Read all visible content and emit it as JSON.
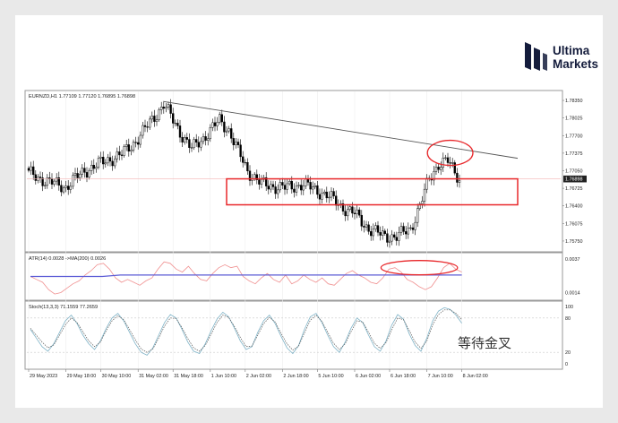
{
  "brand": {
    "name_line1": "Ultima",
    "name_line2": "Markets",
    "logo_icon": "ultima-markets-mark",
    "color": "#141c3c"
  },
  "chart_data": [
    {
      "type": "candlestick",
      "panel": "price",
      "header": "EURNZD,H1  1.77109 1.77120 1.76895 1.76898",
      "symbol": "EURNZD",
      "timeframe": "H1",
      "ohlc_readout": {
        "open": 1.77109,
        "high": 1.7712,
        "low": 1.76895,
        "close": 1.76898
      },
      "current_price_label": "1.76898",
      "ylim": [
        1.756,
        1.785
      ],
      "y_ticks": [
        "1.78350",
        "1.78025",
        "1.77700",
        "1.77375",
        "1.77050",
        "1.76725",
        "1.76400",
        "1.76075",
        "1.75750"
      ],
      "y_tick_values": [
        1.7835,
        1.78025,
        1.777,
        1.77375,
        1.7705,
        1.76725,
        1.764,
        1.76075,
        1.7575
      ],
      "x_ticks": [
        "29 May 2023",
        "29 May 18:00",
        "30 May 10:00",
        "31 May 02:00",
        "31 May 18:00",
        "1 Jun 10:00",
        "2 Jun 02:00",
        "2 Jun 18:00",
        "5 Jun 10:00",
        "6 Jun 02:00",
        "6 Jun 18:00",
        "7 Jun 10:00",
        "8 Jun 02:00"
      ],
      "bar_count": 186,
      "key_points": [
        {
          "bar": 0,
          "price": 1.77
        },
        {
          "bar": 8,
          "price": 1.7685
        },
        {
          "bar": 16,
          "price": 1.7675
        },
        {
          "bar": 24,
          "price": 1.7705
        },
        {
          "bar": 34,
          "price": 1.7725
        },
        {
          "bar": 40,
          "price": 1.7735
        },
        {
          "bar": 46,
          "price": 1.776
        },
        {
          "bar": 50,
          "price": 1.7782
        },
        {
          "bar": 54,
          "price": 1.7805
        },
        {
          "bar": 58,
          "price": 1.7828
        },
        {
          "bar": 62,
          "price": 1.7798
        },
        {
          "bar": 66,
          "price": 1.777
        },
        {
          "bar": 70,
          "price": 1.7745
        },
        {
          "bar": 76,
          "price": 1.777
        },
        {
          "bar": 82,
          "price": 1.7798
        },
        {
          "bar": 86,
          "price": 1.778
        },
        {
          "bar": 90,
          "price": 1.774
        },
        {
          "bar": 94,
          "price": 1.7705
        },
        {
          "bar": 100,
          "price": 1.768
        },
        {
          "bar": 110,
          "price": 1.7673
        },
        {
          "bar": 118,
          "price": 1.768
        },
        {
          "bar": 124,
          "price": 1.7668
        },
        {
          "bar": 128,
          "price": 1.766
        },
        {
          "bar": 134,
          "price": 1.764
        },
        {
          "bar": 140,
          "price": 1.7625
        },
        {
          "bar": 146,
          "price": 1.7598
        },
        {
          "bar": 152,
          "price": 1.7585
        },
        {
          "bar": 158,
          "price": 1.7583
        },
        {
          "bar": 164,
          "price": 1.7598
        },
        {
          "bar": 168,
          "price": 1.764
        },
        {
          "bar": 172,
          "price": 1.769
        },
        {
          "bar": 176,
          "price": 1.7718
        },
        {
          "bar": 180,
          "price": 1.7722
        },
        {
          "bar": 185,
          "price": 1.769
        }
      ],
      "trendline": {
        "from": {
          "bar": 58,
          "price": 1.7833
        },
        "to": {
          "bar": 210,
          "price": 1.7728
        }
      },
      "horizontal_line_price": 1.76898,
      "zone_box": {
        "bar_from": 85,
        "bar_to": 210,
        "price_top": 1.769,
        "price_bottom": 1.7642
      },
      "highlight_ellipse": {
        "bar_from": 172,
        "bar_to": 190,
        "price_center": 1.7738
      },
      "colors": {
        "up": "#ffffff",
        "down": "#000000",
        "trendline": "#555555",
        "annotation": "#e8282b",
        "price_line": "#f3b4b4"
      }
    },
    {
      "type": "line",
      "panel": "atr",
      "header": "ATR(14) 0.0028  ->MA(200) 0.0026",
      "series": [
        {
          "name": "ATR(14)",
          "current": 0.0028,
          "color": "#f09090"
        },
        {
          "name": "MA(200)",
          "current": 0.0026,
          "color": "#5b5bd6"
        }
      ],
      "ylim": [
        0.001,
        0.004
      ],
      "y_ticks": [
        "0.0037",
        "0.0014"
      ],
      "y_tick_values": [
        0.0037,
        0.0014
      ],
      "atr_values": [
        0.0025,
        0.0023,
        0.0021,
        0.0016,
        0.0013,
        0.0014,
        0.0017,
        0.002,
        0.0022,
        0.0026,
        0.0029,
        0.0033,
        0.0034,
        0.003,
        0.0024,
        0.0021,
        0.0023,
        0.0021,
        0.0019,
        0.0022,
        0.0024,
        0.003,
        0.0035,
        0.0034,
        0.003,
        0.0028,
        0.0032,
        0.0027,
        0.0023,
        0.0022,
        0.0027,
        0.0031,
        0.0033,
        0.0031,
        0.0032,
        0.0025,
        0.0022,
        0.002,
        0.0024,
        0.0027,
        0.0023,
        0.0021,
        0.0026,
        0.002,
        0.0022,
        0.0026,
        0.0023,
        0.0021,
        0.0024,
        0.002,
        0.0019,
        0.0023,
        0.0027,
        0.0029,
        0.0026,
        0.0024,
        0.0021,
        0.002,
        0.0024,
        0.003,
        0.0031,
        0.0028,
        0.0023,
        0.0021,
        0.0018,
        0.0016,
        0.0018,
        0.0024,
        0.0031,
        0.0034,
        0.003,
        0.0028
      ],
      "ma_values": [
        0.0025,
        0.0025,
        0.0025,
        0.0025,
        0.0025,
        0.0026,
        0.0026,
        0.0026,
        0.0026,
        0.0026,
        0.0026,
        0.0026,
        0.0026,
        0.0026,
        0.0026,
        0.0026,
        0.0026,
        0.0026,
        0.0026,
        0.0026,
        0.0026,
        0.0026,
        0.0026,
        0.0026,
        0.0026
      ],
      "highlight_ellipse": {
        "index_from": 58,
        "index_to": 70,
        "value_center": 0.0031
      }
    },
    {
      "type": "line",
      "panel": "stochastic",
      "header": "Stoch(13,3,3)  71.1559 77.2659",
      "series": [
        {
          "name": "%K",
          "current": 71.1559,
          "color": "#7fb3c7"
        },
        {
          "name": "%D",
          "current": 77.2659,
          "color": "#555555"
        }
      ],
      "ylim": [
        0,
        100
      ],
      "y_ticks": [
        "100",
        "80",
        "20",
        "0"
      ],
      "y_tick_values": [
        100,
        80,
        20,
        0
      ],
      "k_values": [
        60,
        45,
        30,
        22,
        35,
        55,
        75,
        85,
        70,
        50,
        35,
        25,
        40,
        62,
        80,
        88,
        75,
        55,
        35,
        20,
        15,
        28,
        50,
        72,
        86,
        80,
        60,
        38,
        22,
        18,
        35,
        58,
        78,
        90,
        82,
        62,
        40,
        25,
        30,
        55,
        75,
        85,
        70,
        48,
        28,
        18,
        32,
        60,
        82,
        88,
        72,
        50,
        30,
        20,
        38,
        62,
        80,
        72,
        50,
        30,
        22,
        40,
        68,
        86,
        78,
        52,
        32,
        22,
        45,
        75,
        92,
        98,
        95,
        85,
        71
      ],
      "d_values": [
        62,
        50,
        38,
        28,
        33,
        50,
        68,
        80,
        72,
        56,
        40,
        30,
        38,
        58,
        75,
        84,
        77,
        60,
        42,
        26,
        20,
        26,
        45,
        66,
        80,
        79,
        63,
        44,
        28,
        22,
        32,
        52,
        72,
        85,
        81,
        65,
        46,
        30,
        31,
        50,
        70,
        81,
        73,
        53,
        35,
        24,
        31,
        54,
        76,
        85,
        74,
        55,
        36,
        25,
        35,
        56,
        75,
        73,
        55,
        36,
        27,
        37,
        60,
        80,
        77,
        58,
        38,
        27,
        40,
        68,
        86,
        94,
        94,
        88,
        77
      ]
    }
  ],
  "annotation_text": "等待金叉"
}
